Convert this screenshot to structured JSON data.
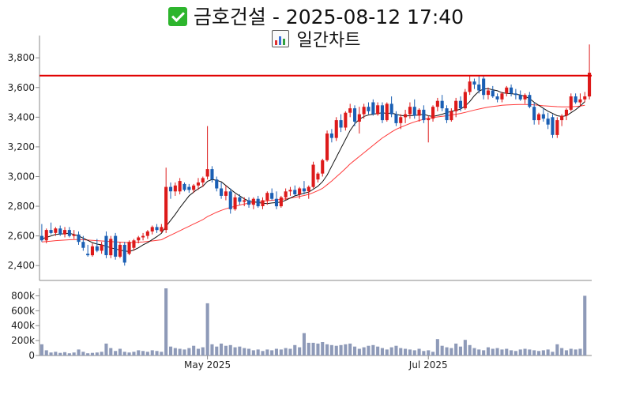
{
  "header": {
    "title": "금호건설 - 2025-08-12 17:40",
    "subtitle": "일간차트",
    "check_icon": "check-mark-icon",
    "chart_icon": "bar-chart-icon"
  },
  "colors": {
    "up": "#dd1a1a",
    "down": "#1a5fb4",
    "ma_short": "#111111",
    "ma_long": "#ff3a3a",
    "resistance": "#e00000",
    "volume": "#8e9ab8"
  },
  "chart_data": {
    "type": "candlestick",
    "price_axis": {
      "ylim": [
        2300,
        3950
      ],
      "ticks": [
        2400,
        2600,
        2800,
        3000,
        3200,
        3400,
        3600,
        3800
      ],
      "tick_labels": [
        "2,400",
        "2,600",
        "2,800",
        "3,000",
        "3,200",
        "3,400",
        "3,600",
        "3,800"
      ]
    },
    "volume_axis": {
      "ylim": [
        0,
        900000
      ],
      "ticks": [
        0,
        200000,
        400000,
        600000,
        800000
      ],
      "tick_labels": [
        "0",
        "200k",
        "400k",
        "600k",
        "800k"
      ]
    },
    "x_labels": [
      {
        "label": "May 2025",
        "index": 36
      },
      {
        "label": "Jul 2025",
        "index": 84
      }
    ],
    "resistance_level": 3680,
    "candles": [
      [
        2600,
        2680,
        2560,
        2570
      ],
      [
        2570,
        2650,
        2550,
        2640
      ],
      [
        2640,
        2690,
        2610,
        2620
      ],
      [
        2620,
        2660,
        2600,
        2650
      ],
      [
        2650,
        2670,
        2600,
        2610
      ],
      [
        2610,
        2660,
        2590,
        2640
      ],
      [
        2640,
        2660,
        2590,
        2600
      ],
      [
        2600,
        2640,
        2580,
        2610
      ],
      [
        2610,
        2630,
        2540,
        2560
      ],
      [
        2560,
        2600,
        2500,
        2520
      ],
      [
        2480,
        2540,
        2460,
        2470
      ],
      [
        2470,
        2550,
        2460,
        2530
      ],
      [
        2530,
        2580,
        2490,
        2500
      ],
      [
        2500,
        2560,
        2480,
        2540
      ],
      [
        2600,
        2630,
        2450,
        2470
      ],
      [
        2470,
        2600,
        2450,
        2580
      ],
      [
        2600,
        2620,
        2440,
        2460
      ],
      [
        2460,
        2560,
        2450,
        2540
      ],
      [
        2540,
        2560,
        2400,
        2420
      ],
      [
        2480,
        2570,
        2470,
        2560
      ],
      [
        2520,
        2580,
        2500,
        2570
      ],
      [
        2570,
        2600,
        2550,
        2590
      ],
      [
        2590,
        2620,
        2570,
        2600
      ],
      [
        2600,
        2640,
        2580,
        2630
      ],
      [
        2630,
        2670,
        2610,
        2660
      ],
      [
        2660,
        2680,
        2620,
        2640
      ],
      [
        2630,
        2680,
        2620,
        2660
      ],
      [
        2640,
        3060,
        2620,
        2930
      ],
      [
        2930,
        2960,
        2850,
        2900
      ],
      [
        2900,
        2960,
        2870,
        2940
      ],
      [
        2900,
        2990,
        2880,
        2970
      ],
      [
        2950,
        2960,
        2900,
        2910
      ],
      [
        2930,
        2950,
        2890,
        2910
      ],
      [
        2910,
        2950,
        2890,
        2940
      ],
      [
        2940,
        2990,
        2910,
        2960
      ],
      [
        2960,
        3000,
        2930,
        2990
      ],
      [
        3000,
        3340,
        2980,
        3050
      ],
      [
        3050,
        3070,
        2960,
        2980
      ],
      [
        2980,
        3000,
        2900,
        2920
      ],
      [
        2920,
        2960,
        2850,
        2870
      ],
      [
        2870,
        2940,
        2840,
        2900
      ],
      [
        2900,
        2920,
        2750,
        2780
      ],
      [
        2780,
        2880,
        2770,
        2860
      ],
      [
        2860,
        2880,
        2810,
        2830
      ],
      [
        2830,
        2860,
        2800,
        2840
      ],
      [
        2840,
        2860,
        2790,
        2810
      ],
      [
        2810,
        2860,
        2780,
        2850
      ],
      [
        2850,
        2870,
        2790,
        2800
      ],
      [
        2800,
        2860,
        2780,
        2840
      ],
      [
        2840,
        2900,
        2810,
        2890
      ],
      [
        2890,
        2920,
        2840,
        2850
      ],
      [
        2850,
        2900,
        2780,
        2800
      ],
      [
        2800,
        2870,
        2790,
        2860
      ],
      [
        2860,
        2920,
        2840,
        2900
      ],
      [
        2900,
        2930,
        2870,
        2910
      ],
      [
        2910,
        2940,
        2870,
        2880
      ],
      [
        2880,
        2930,
        2850,
        2920
      ],
      [
        2920,
        2970,
        2880,
        2900
      ],
      [
        2900,
        2940,
        2850,
        2930
      ],
      [
        2930,
        3100,
        2920,
        3080
      ],
      [
        2980,
        3030,
        2960,
        3020
      ],
      [
        3020,
        3120,
        3000,
        3110
      ],
      [
        3110,
        3310,
        3100,
        3290
      ],
      [
        3290,
        3320,
        3230,
        3260
      ],
      [
        3260,
        3400,
        3240,
        3380
      ],
      [
        3380,
        3420,
        3300,
        3330
      ],
      [
        3330,
        3440,
        3310,
        3430
      ],
      [
        3430,
        3490,
        3400,
        3460
      ],
      [
        3460,
        3480,
        3340,
        3370
      ],
      [
        3370,
        3470,
        3290,
        3420
      ],
      [
        3420,
        3490,
        3390,
        3470
      ],
      [
        3470,
        3500,
        3420,
        3440
      ],
      [
        3500,
        3520,
        3410,
        3420
      ],
      [
        3420,
        3500,
        3410,
        3480
      ],
      [
        3480,
        3500,
        3360,
        3380
      ],
      [
        3380,
        3500,
        3370,
        3490
      ],
      [
        3490,
        3540,
        3400,
        3420
      ],
      [
        3420,
        3440,
        3340,
        3360
      ],
      [
        3360,
        3420,
        3320,
        3400
      ],
      [
        3400,
        3450,
        3360,
        3420
      ],
      [
        3420,
        3500,
        3390,
        3470
      ],
      [
        3470,
        3520,
        3390,
        3410
      ],
      [
        3410,
        3460,
        3370,
        3450
      ],
      [
        3450,
        3480,
        3360,
        3380
      ],
      [
        3380,
        3410,
        3230,
        3390
      ],
      [
        3390,
        3480,
        3370,
        3470
      ],
      [
        3470,
        3530,
        3440,
        3510
      ],
      [
        3510,
        3550,
        3440,
        3460
      ],
      [
        3460,
        3480,
        3360,
        3380
      ],
      [
        3380,
        3460,
        3370,
        3440
      ],
      [
        3440,
        3530,
        3400,
        3510
      ],
      [
        3510,
        3540,
        3440,
        3460
      ],
      [
        3460,
        3590,
        3450,
        3570
      ],
      [
        3570,
        3680,
        3550,
        3640
      ],
      [
        3640,
        3660,
        3590,
        3620
      ],
      [
        3620,
        3680,
        3560,
        3580
      ],
      [
        3660,
        3680,
        3520,
        3550
      ],
      [
        3550,
        3600,
        3520,
        3580
      ],
      [
        3580,
        3610,
        3530,
        3540
      ],
      [
        3540,
        3560,
        3500,
        3520
      ],
      [
        3520,
        3570,
        3500,
        3560
      ],
      [
        3560,
        3610,
        3540,
        3600
      ],
      [
        3600,
        3620,
        3540,
        3560
      ],
      [
        3560,
        3590,
        3520,
        3550
      ],
      [
        3550,
        3580,
        3510,
        3520
      ],
      [
        3520,
        3560,
        3490,
        3550
      ],
      [
        3550,
        3570,
        3460,
        3470
      ],
      [
        3470,
        3500,
        3350,
        3380
      ],
      [
        3380,
        3430,
        3350,
        3420
      ],
      [
        3420,
        3460,
        3370,
        3390
      ],
      [
        3390,
        3430,
        3320,
        3350
      ],
      [
        3400,
        3420,
        3260,
        3280
      ],
      [
        3280,
        3400,
        3260,
        3380
      ],
      [
        3380,
        3420,
        3340,
        3410
      ],
      [
        3410,
        3460,
        3380,
        3450
      ],
      [
        3450,
        3560,
        3440,
        3540
      ],
      [
        3540,
        3560,
        3490,
        3500
      ],
      [
        3500,
        3560,
        3470,
        3520
      ],
      [
        3520,
        3570,
        3500,
        3540
      ],
      [
        3540,
        3890,
        3520,
        3700
      ]
    ],
    "ma_short": [
      2580,
      2590,
      2600,
      2610,
      2612,
      2615,
      2618,
      2610,
      2600,
      2585,
      2570,
      2555,
      2545,
      2540,
      2530,
      2520,
      2512,
      2505,
      2498,
      2495,
      2505,
      2520,
      2540,
      2555,
      2575,
      2595,
      2618,
      2665,
      2705,
      2745,
      2790,
      2830,
      2870,
      2895,
      2918,
      2935,
      2968,
      2980,
      2975,
      2965,
      2940,
      2915,
      2890,
      2870,
      2850,
      2835,
      2830,
      2825,
      2820,
      2818,
      2822,
      2825,
      2828,
      2840,
      2855,
      2870,
      2878,
      2888,
      2895,
      2915,
      2935,
      2965,
      3010,
      3070,
      3130,
      3190,
      3250,
      3310,
      3355,
      3385,
      3405,
      3415,
      3420,
      3425,
      3430,
      3425,
      3428,
      3420,
      3412,
      3408,
      3410,
      3412,
      3415,
      3420,
      3410,
      3405,
      3412,
      3420,
      3430,
      3440,
      3445,
      3455,
      3475,
      3505,
      3545,
      3575,
      3590,
      3592,
      3585,
      3578,
      3565,
      3560,
      3558,
      3555,
      3550,
      3540,
      3525,
      3500,
      3480,
      3460,
      3440,
      3425,
      3410,
      3405,
      3410,
      3430,
      3450,
      3475,
      3505
    ],
    "ma_long": [
      2560,
      2562,
      2565,
      2568,
      2570,
      2572,
      2574,
      2575,
      2575,
      2574,
      2572,
      2570,
      2568,
      2566,
      2564,
      2562,
      2560,
      2558,
      2556,
      2555,
      2556,
      2558,
      2560,
      2563,
      2566,
      2570,
      2574,
      2590,
      2605,
      2620,
      2635,
      2650,
      2665,
      2680,
      2695,
      2710,
      2730,
      2745,
      2760,
      2772,
      2783,
      2792,
      2800,
      2808,
      2815,
      2820,
      2825,
      2830,
      2834,
      2837,
      2840,
      2843,
      2846,
      2850,
      2855,
      2860,
      2866,
      2872,
      2880,
      2892,
      2905,
      2920,
      2945,
      2970,
      2998,
      3025,
      3055,
      3085,
      3110,
      3135,
      3160,
      3185,
      3210,
      3235,
      3260,
      3280,
      3300,
      3318,
      3332,
      3345,
      3357,
      3368,
      3378,
      3386,
      3392,
      3398,
      3402,
      3406,
      3410,
      3415,
      3420,
      3425,
      3432,
      3440,
      3448,
      3455,
      3462,
      3468,
      3472,
      3476,
      3480,
      3482,
      3484,
      3485,
      3486,
      3486,
      3485,
      3483,
      3480,
      3477,
      3475,
      3473,
      3471,
      3470,
      3470,
      3470,
      3472,
      3475,
      3480
    ],
    "volumes": [
      150000,
      70000,
      40000,
      50000,
      35000,
      45000,
      30000,
      40000,
      80000,
      50000,
      30000,
      35000,
      40000,
      50000,
      160000,
      100000,
      60000,
      90000,
      50000,
      40000,
      50000,
      70000,
      60000,
      50000,
      70000,
      60000,
      50000,
      900000,
      120000,
      100000,
      90000,
      80000,
      100000,
      130000,
      90000,
      110000,
      700000,
      150000,
      120000,
      160000,
      130000,
      140000,
      110000,
      120000,
      100000,
      90000,
      70000,
      80000,
      60000,
      80000,
      70000,
      90000,
      80000,
      100000,
      90000,
      140000,
      110000,
      300000,
      170000,
      170000,
      160000,
      180000,
      150000,
      140000,
      130000,
      140000,
      150000,
      160000,
      120000,
      90000,
      110000,
      130000,
      140000,
      120000,
      100000,
      80000,
      110000,
      130000,
      100000,
      90000,
      80000,
      70000,
      90000,
      60000,
      70000,
      50000,
      220000,
      130000,
      110000,
      100000,
      160000,
      120000,
      210000,
      140000,
      100000,
      80000,
      70000,
      110000,
      90000,
      100000,
      80000,
      90000,
      70000,
      60000,
      80000,
      90000,
      80000,
      70000,
      60000,
      70000,
      80000,
      50000,
      150000,
      100000,
      70000,
      90000,
      80000,
      90000,
      800000
    ]
  }
}
